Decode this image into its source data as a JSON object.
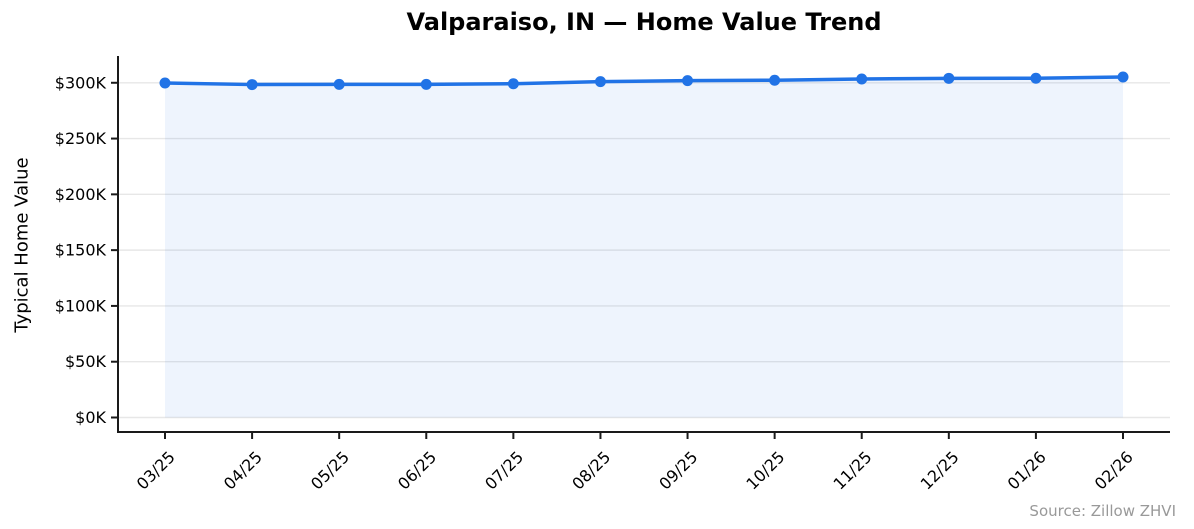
{
  "chart_data": {
    "type": "line",
    "title": "Valparaiso, IN — Home Value Trend",
    "xlabel": "",
    "ylabel": "Typical Home Value",
    "categories": [
      "03/25",
      "04/25",
      "05/25",
      "06/25",
      "07/25",
      "08/25",
      "09/25",
      "10/25",
      "11/25",
      "12/25",
      "01/26",
      "02/26"
    ],
    "series": [
      {
        "name": "Typical Home Value (USD)",
        "values": [
          299800,
          298400,
          298600,
          298600,
          299100,
          301000,
          301900,
          302300,
          303400,
          304000,
          304100,
          305200
        ]
      }
    ],
    "ylim": [
      -13000,
      324000
    ],
    "yticks": [
      0,
      50000,
      100000,
      150000,
      200000,
      250000,
      300000
    ],
    "ytick_labels": [
      "$0K",
      "$50K",
      "$100K",
      "$150K",
      "$200K",
      "$250K",
      "$300K"
    ],
    "grid": "horizontal",
    "legend": "none",
    "fill_to_zero": true,
    "marker": "circle",
    "colors": {
      "line": "#2173e6",
      "marker": "#2173e6",
      "fill": "rgba(33,115,230,0.08)",
      "grid": "#e7e7e7",
      "axis": "#1a1a1a",
      "tick_label": "#000000",
      "title": "#000000",
      "source": "#999999"
    }
  },
  "source_note": "Source: Zillow ZHVI"
}
